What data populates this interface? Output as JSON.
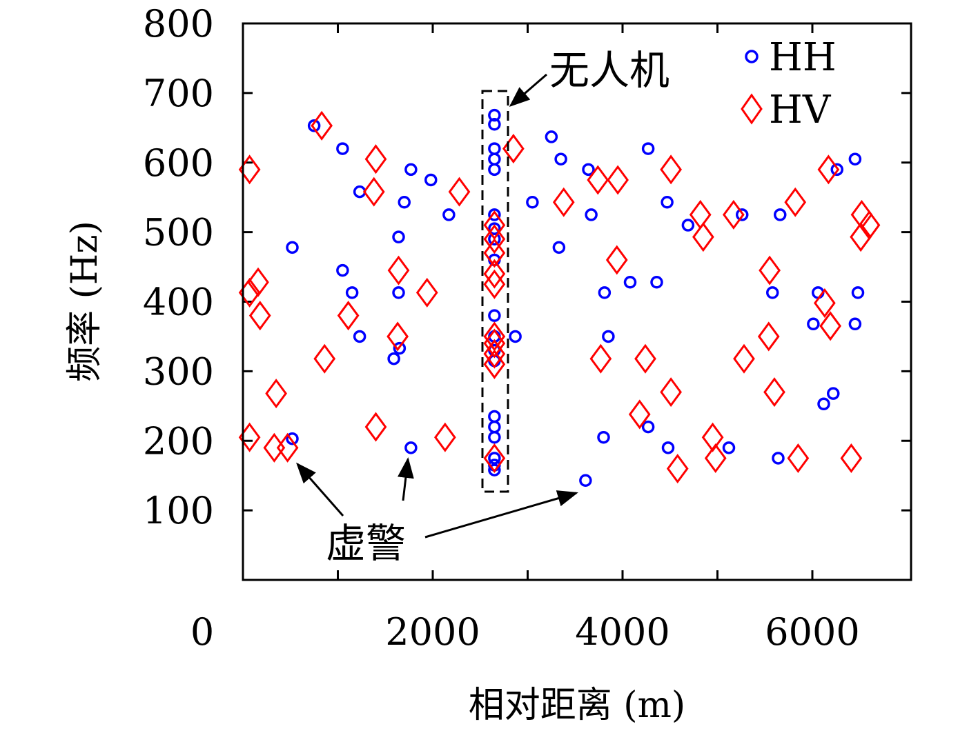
{
  "chart_data": {
    "type": "scatter",
    "xlabel": "相对距离 (m)",
    "ylabel": "频率 (Hz)",
    "xlim": [
      0,
      7000
    ],
    "ylim": [
      0,
      800
    ],
    "xticks": [
      0,
      2000,
      4000,
      6000
    ],
    "yticks": [
      100,
      200,
      300,
      400,
      500,
      600,
      700,
      800
    ],
    "grid": false,
    "legend": "top-right",
    "series": [
      {
        "name": "HH",
        "marker": "circle",
        "color": "#0000ff",
        "points": [
          [
            520,
            478
          ],
          [
            520,
            203
          ],
          [
            750,
            653
          ],
          [
            1050,
            620
          ],
          [
            1050,
            445
          ],
          [
            1150,
            413
          ],
          [
            1230,
            558
          ],
          [
            1230,
            350
          ],
          [
            1640,
            493
          ],
          [
            1640,
            413
          ],
          [
            1650,
            333
          ],
          [
            1590,
            318
          ],
          [
            1700,
            543
          ],
          [
            1770,
            590
          ],
          [
            1770,
            190
          ],
          [
            1980,
            575
          ],
          [
            2170,
            525
          ],
          [
            2650,
            668
          ],
          [
            2650,
            655
          ],
          [
            2650,
            620
          ],
          [
            2650,
            605
          ],
          [
            2650,
            590
          ],
          [
            2650,
            525
          ],
          [
            2650,
            505
          ],
          [
            2650,
            490
          ],
          [
            2650,
            460
          ],
          [
            2650,
            380
          ],
          [
            2650,
            350
          ],
          [
            2650,
            330
          ],
          [
            2650,
            315
          ],
          [
            2650,
            235
          ],
          [
            2650,
            220
          ],
          [
            2650,
            205
          ],
          [
            2650,
            175
          ],
          [
            2650,
            165
          ],
          [
            2650,
            158
          ],
          [
            2870,
            350
          ],
          [
            3050,
            543
          ],
          [
            3250,
            637
          ],
          [
            3330,
            478
          ],
          [
            3350,
            605
          ],
          [
            3640,
            590
          ],
          [
            3670,
            525
          ],
          [
            3610,
            143
          ],
          [
            3810,
            413
          ],
          [
            3850,
            350
          ],
          [
            3800,
            205
          ],
          [
            4080,
            428
          ],
          [
            4270,
            620
          ],
          [
            4270,
            220
          ],
          [
            4360,
            428
          ],
          [
            4470,
            543
          ],
          [
            4480,
            190
          ],
          [
            4690,
            510
          ],
          [
            5260,
            525
          ],
          [
            5120,
            190
          ],
          [
            5580,
            413
          ],
          [
            5660,
            525
          ],
          [
            5640,
            175
          ],
          [
            6010,
            368
          ],
          [
            6060,
            413
          ],
          [
            6120,
            253
          ],
          [
            6220,
            268
          ],
          [
            6260,
            590
          ],
          [
            6450,
            605
          ],
          [
            6450,
            368
          ],
          [
            6480,
            413
          ]
        ]
      },
      {
        "name": "HV",
        "marker": "diamond",
        "color": "#ff0000",
        "points": [
          [
            70,
            590
          ],
          [
            70,
            413
          ],
          [
            70,
            205
          ],
          [
            160,
            428
          ],
          [
            180,
            380
          ],
          [
            350,
            268
          ],
          [
            330,
            190
          ],
          [
            470,
            190
          ],
          [
            830,
            653
          ],
          [
            860,
            318
          ],
          [
            1110,
            380
          ],
          [
            1400,
            605
          ],
          [
            1380,
            558
          ],
          [
            1400,
            220
          ],
          [
            1640,
            445
          ],
          [
            1630,
            350
          ],
          [
            1940,
            413
          ],
          [
            2130,
            205
          ],
          [
            2280,
            558
          ],
          [
            2650,
            510
          ],
          [
            2650,
            490
          ],
          [
            2650,
            470
          ],
          [
            2650,
            440
          ],
          [
            2650,
            425
          ],
          [
            2650,
            350
          ],
          [
            2650,
            340
          ],
          [
            2650,
            325
          ],
          [
            2650,
            310
          ],
          [
            2650,
            175
          ],
          [
            2850,
            620
          ],
          [
            3380,
            543
          ],
          [
            3740,
            575
          ],
          [
            3950,
            575
          ],
          [
            3940,
            460
          ],
          [
            3770,
            318
          ],
          [
            4240,
            318
          ],
          [
            4180,
            238
          ],
          [
            4510,
            590
          ],
          [
            4510,
            270
          ],
          [
            4580,
            160
          ],
          [
            4820,
            525
          ],
          [
            4850,
            493
          ],
          [
            4950,
            205
          ],
          [
            4980,
            175
          ],
          [
            5170,
            525
          ],
          [
            5280,
            318
          ],
          [
            5550,
            445
          ],
          [
            5540,
            350
          ],
          [
            5600,
            270
          ],
          [
            5820,
            543
          ],
          [
            5850,
            175
          ],
          [
            6130,
            398
          ],
          [
            6170,
            590
          ],
          [
            6190,
            365
          ],
          [
            6410,
            175
          ],
          [
            6520,
            525
          ],
          [
            6510,
            493
          ],
          [
            6600,
            510
          ]
        ]
      }
    ],
    "annotations": [
      {
        "text": "无人机",
        "target": "dashed box around x≈2650, y≈125–700"
      },
      {
        "text": "虚警",
        "arrows_to": [
          [
            480,
            190
          ],
          [
            1770,
            190
          ],
          [
            3610,
            143
          ]
        ]
      }
    ]
  }
}
